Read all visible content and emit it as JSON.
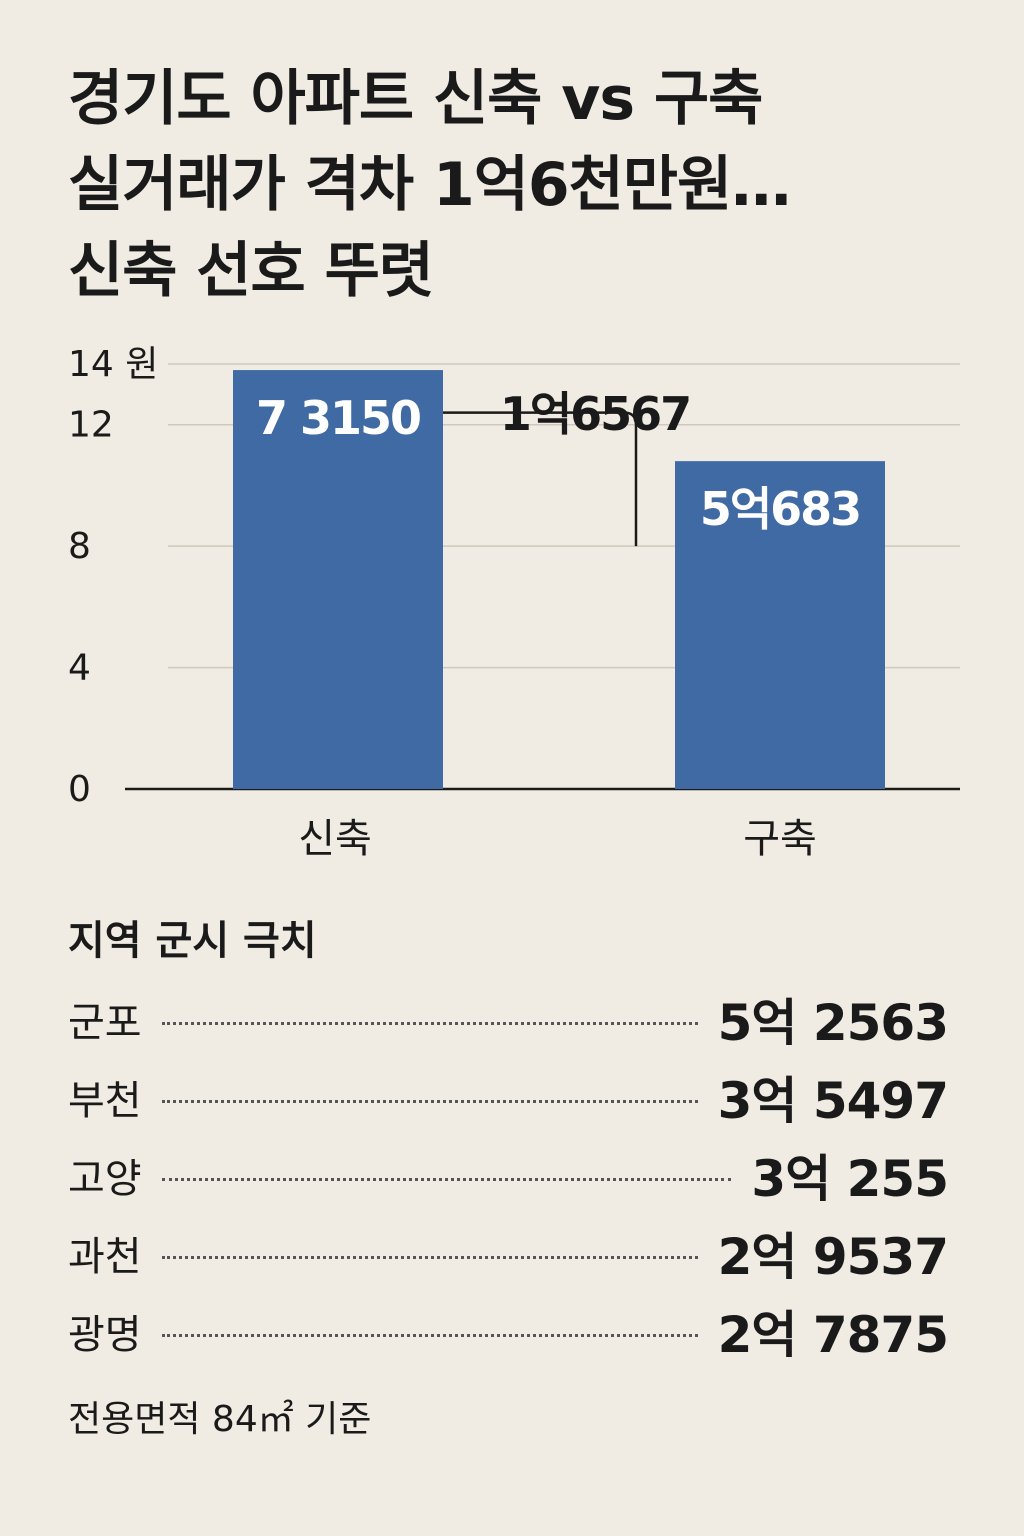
{
  "title_lines": [
    "경기도 아파트 신축 vs   구축",
    "실거래가 격차 1억6천만원…",
    "신축 선호 뚜렷"
  ],
  "chart_data": {
    "type": "bar",
    "categories": [
      "신축",
      "구축"
    ],
    "values": [
      13.8,
      10.8
    ],
    "value_labels": [
      "7 3150",
      "5억683"
    ],
    "ylim": [
      0,
      14
    ],
    "yticks": [
      0,
      4,
      8,
      12,
      14
    ],
    "ytick_labels": [
      "0",
      "4",
      "8",
      "12",
      "14 원"
    ],
    "grid": true,
    "bar_color": "#3f6aa3",
    "annotation": {
      "label": "1억6567",
      "from_value": 12.4,
      "to_value": 8.0
    }
  },
  "regions": {
    "title": "지역 군시 극치",
    "items": [
      {
        "name": "군포",
        "value": "5억 2563"
      },
      {
        "name": "부천",
        "value": "3억 5497"
      },
      {
        "name": "고양",
        "value": "3억 255"
      },
      {
        "name": "과천",
        "value": "2억 9537"
      },
      {
        "name": "광명",
        "value": "2억 7875"
      }
    ]
  },
  "footnote": "전용면적 84㎡ 기준"
}
